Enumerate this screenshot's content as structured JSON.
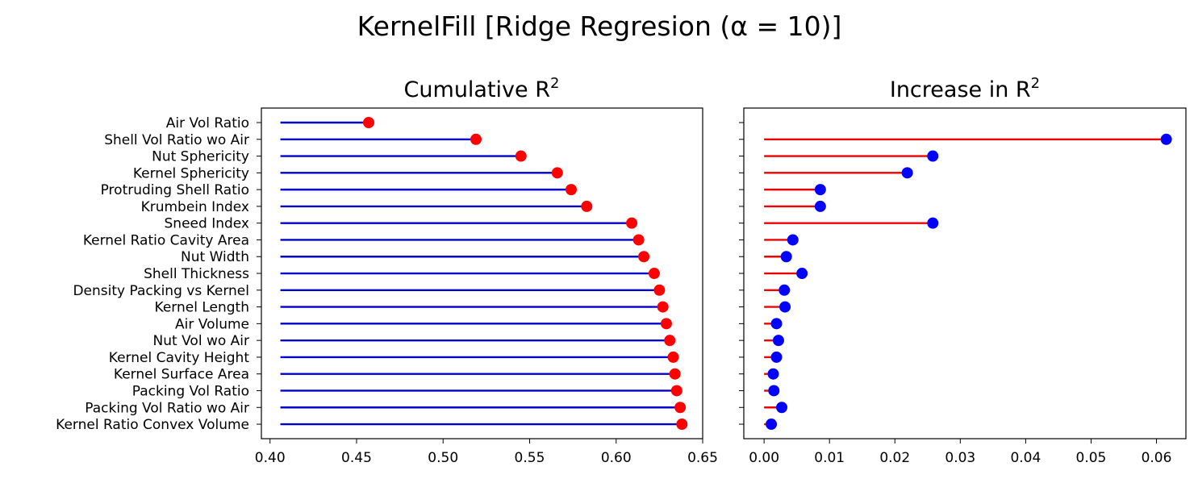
{
  "figure": {
    "suptitle": "KernelFill [Ridge Regresion (α = 10)]"
  },
  "chart_data": [
    {
      "type": "lollipop",
      "title": "Cumulative R²",
      "title_main": "Cumulative R",
      "title_sup": "2",
      "xlabel": "",
      "ylabel": "",
      "xlim": [
        0.395,
        0.65
      ],
      "xticks": [
        0.4,
        0.45,
        0.5,
        0.55,
        0.6,
        0.65
      ],
      "xtick_labels": [
        "0.40",
        "0.45",
        "0.50",
        "0.55",
        "0.60",
        "0.65"
      ],
      "baseline": 0.406,
      "categories": [
        "Air Vol Ratio",
        "Shell Vol Ratio wo Air",
        "Nut Sphericity",
        "Kernel Sphericity",
        "Protruding Shell Ratio",
        "Krumbein Index",
        "Sneed Index",
        "Kernel Ratio Cavity Area",
        "Nut Width",
        "Shell Thickness",
        "Density Packing vs Kernel",
        "Kernel Length",
        "Air Volume",
        "Nut Vol wo Air",
        "Kernel Cavity Height",
        "Kernel Surface Area",
        "Packing Vol Ratio",
        "Packing Vol Ratio wo Air",
        "Kernel Ratio Convex Volume"
      ],
      "values": [
        0.457,
        0.519,
        0.545,
        0.566,
        0.574,
        0.583,
        0.609,
        0.613,
        0.616,
        0.622,
        0.625,
        0.627,
        0.629,
        0.631,
        0.633,
        0.634,
        0.635,
        0.637,
        0.638
      ],
      "stem_color": "#0000cc",
      "marker_color": "#ff0000",
      "grid": false
    },
    {
      "type": "lollipop",
      "title": "Increase in R²",
      "title_main": "Increase in R",
      "title_sup": "2",
      "xlabel": "",
      "ylabel": "",
      "xlim": [
        -0.0031,
        0.0645
      ],
      "xticks": [
        0.0,
        0.01,
        0.02,
        0.03,
        0.04,
        0.05,
        0.06
      ],
      "xtick_labels": [
        "0.00",
        "0.01",
        "0.02",
        "0.03",
        "0.04",
        "0.05",
        "0.06"
      ],
      "baseline": 0,
      "categories": [
        "Air Vol Ratio",
        "Shell Vol Ratio wo Air",
        "Nut Sphericity",
        "Kernel Sphericity",
        "Protruding Shell Ratio",
        "Krumbein Index",
        "Sneed Index",
        "Kernel Ratio Cavity Area",
        "Nut Width",
        "Shell Thickness",
        "Density Packing vs Kernel",
        "Kernel Length",
        "Air Volume",
        "Nut Vol wo Air",
        "Kernel Cavity Height",
        "Kernel Surface Area",
        "Packing Vol Ratio",
        "Packing Vol Ratio wo Air",
        "Kernel Ratio Convex Volume"
      ],
      "values": [
        null,
        0.0615,
        0.0258,
        0.0219,
        0.0086,
        0.0086,
        0.0258,
        0.0044,
        0.0034,
        0.0058,
        0.0031,
        0.0032,
        0.0019,
        0.0022,
        0.0019,
        0.0014,
        0.0015,
        0.0027,
        0.0011
      ],
      "stem_color": "#ee0000",
      "marker_color": "#0000ff",
      "grid": false
    }
  ]
}
